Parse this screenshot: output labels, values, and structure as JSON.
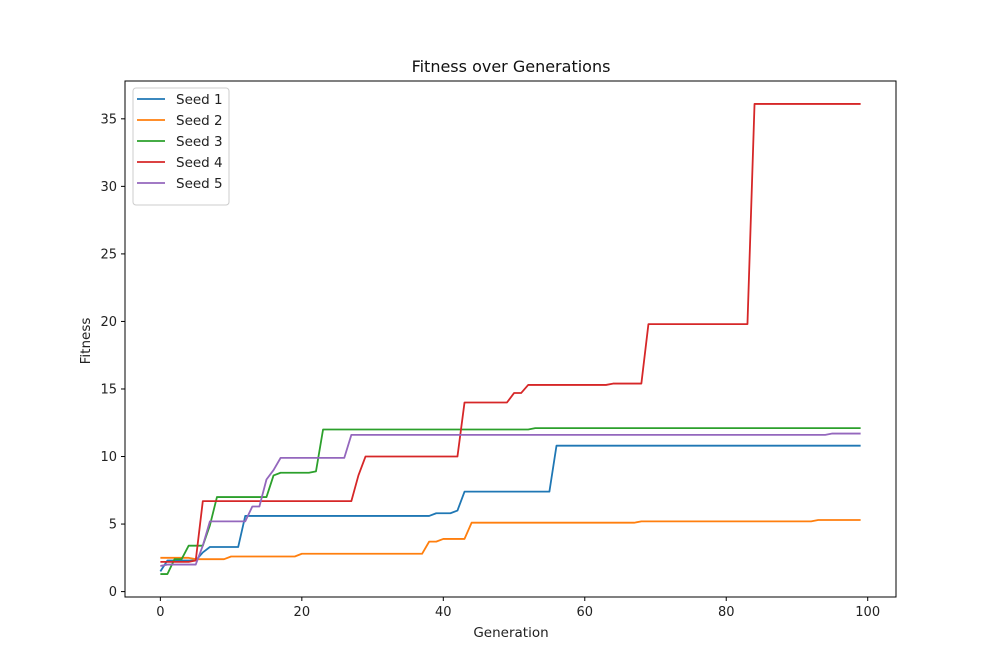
{
  "chart_data": {
    "type": "line",
    "title": "Fitness over Generations",
    "xlabel": "Generation",
    "ylabel": "Fitness",
    "xlim": [
      -5,
      104
    ],
    "ylim": [
      -0.4,
      37.8
    ],
    "xticks": [
      0,
      20,
      40,
      60,
      80,
      100
    ],
    "yticks": [
      0,
      5,
      10,
      15,
      20,
      25,
      30,
      35
    ],
    "grid": false,
    "legend_position": "top-left",
    "series": [
      {
        "name": "Seed 1",
        "color": "#1f77b4",
        "points": [
          [
            0,
            1.5
          ],
          [
            1,
            2.3
          ],
          [
            5,
            2.3
          ],
          [
            6,
            2.9
          ],
          [
            7,
            3.3
          ],
          [
            11,
            3.3
          ],
          [
            12,
            5.6
          ],
          [
            38,
            5.6
          ],
          [
            39,
            5.8
          ],
          [
            41,
            5.8
          ],
          [
            42,
            6.0
          ],
          [
            43,
            7.4
          ],
          [
            55,
            7.4
          ],
          [
            56,
            10.8
          ],
          [
            99,
            10.8
          ]
        ]
      },
      {
        "name": "Seed 2",
        "color": "#ff7f0e",
        "points": [
          [
            0,
            2.5
          ],
          [
            4,
            2.5
          ],
          [
            5,
            2.4
          ],
          [
            9,
            2.4
          ],
          [
            10,
            2.6
          ],
          [
            19,
            2.6
          ],
          [
            20,
            2.8
          ],
          [
            37,
            2.8
          ],
          [
            38,
            3.7
          ],
          [
            39,
            3.7
          ],
          [
            40,
            3.9
          ],
          [
            43,
            3.9
          ],
          [
            44,
            5.1
          ],
          [
            67,
            5.1
          ],
          [
            68,
            5.2
          ],
          [
            92,
            5.2
          ],
          [
            93,
            5.3
          ],
          [
            99,
            5.3
          ]
        ]
      },
      {
        "name": "Seed 3",
        "color": "#2ca02c",
        "points": [
          [
            0,
            1.3
          ],
          [
            1,
            1.3
          ],
          [
            2,
            2.4
          ],
          [
            3,
            2.4
          ],
          [
            4,
            3.4
          ],
          [
            6,
            3.4
          ],
          [
            7,
            4.9
          ],
          [
            8,
            7.0
          ],
          [
            15,
            7.0
          ],
          [
            16,
            8.6
          ],
          [
            17,
            8.8
          ],
          [
            21,
            8.8
          ],
          [
            22,
            8.9
          ],
          [
            23,
            12.0
          ],
          [
            52,
            12.0
          ],
          [
            53,
            12.1
          ],
          [
            99,
            12.1
          ]
        ]
      },
      {
        "name": "Seed 4",
        "color": "#d62728",
        "points": [
          [
            0,
            2.2
          ],
          [
            4,
            2.2
          ],
          [
            5,
            2.3
          ],
          [
            6,
            6.7
          ],
          [
            27,
            6.7
          ],
          [
            28,
            8.6
          ],
          [
            29,
            10.0
          ],
          [
            42,
            10.0
          ],
          [
            43,
            14.0
          ],
          [
            49,
            14.0
          ],
          [
            50,
            14.7
          ],
          [
            51,
            14.7
          ],
          [
            52,
            15.3
          ],
          [
            63,
            15.3
          ],
          [
            64,
            15.4
          ],
          [
            68,
            15.4
          ],
          [
            69,
            19.8
          ],
          [
            83,
            19.8
          ],
          [
            84,
            36.1
          ],
          [
            99,
            36.1
          ]
        ]
      },
      {
        "name": "Seed 5",
        "color": "#9467bd",
        "points": [
          [
            0,
            1.9
          ],
          [
            1,
            2.0
          ],
          [
            5,
            2.0
          ],
          [
            6,
            3.4
          ],
          [
            7,
            5.2
          ],
          [
            12,
            5.2
          ],
          [
            13,
            6.3
          ],
          [
            14,
            6.3
          ],
          [
            15,
            8.3
          ],
          [
            16,
            9.0
          ],
          [
            17,
            9.9
          ],
          [
            26,
            9.9
          ],
          [
            27,
            11.6
          ],
          [
            94,
            11.6
          ],
          [
            95,
            11.7
          ],
          [
            99,
            11.7
          ]
        ]
      }
    ]
  }
}
